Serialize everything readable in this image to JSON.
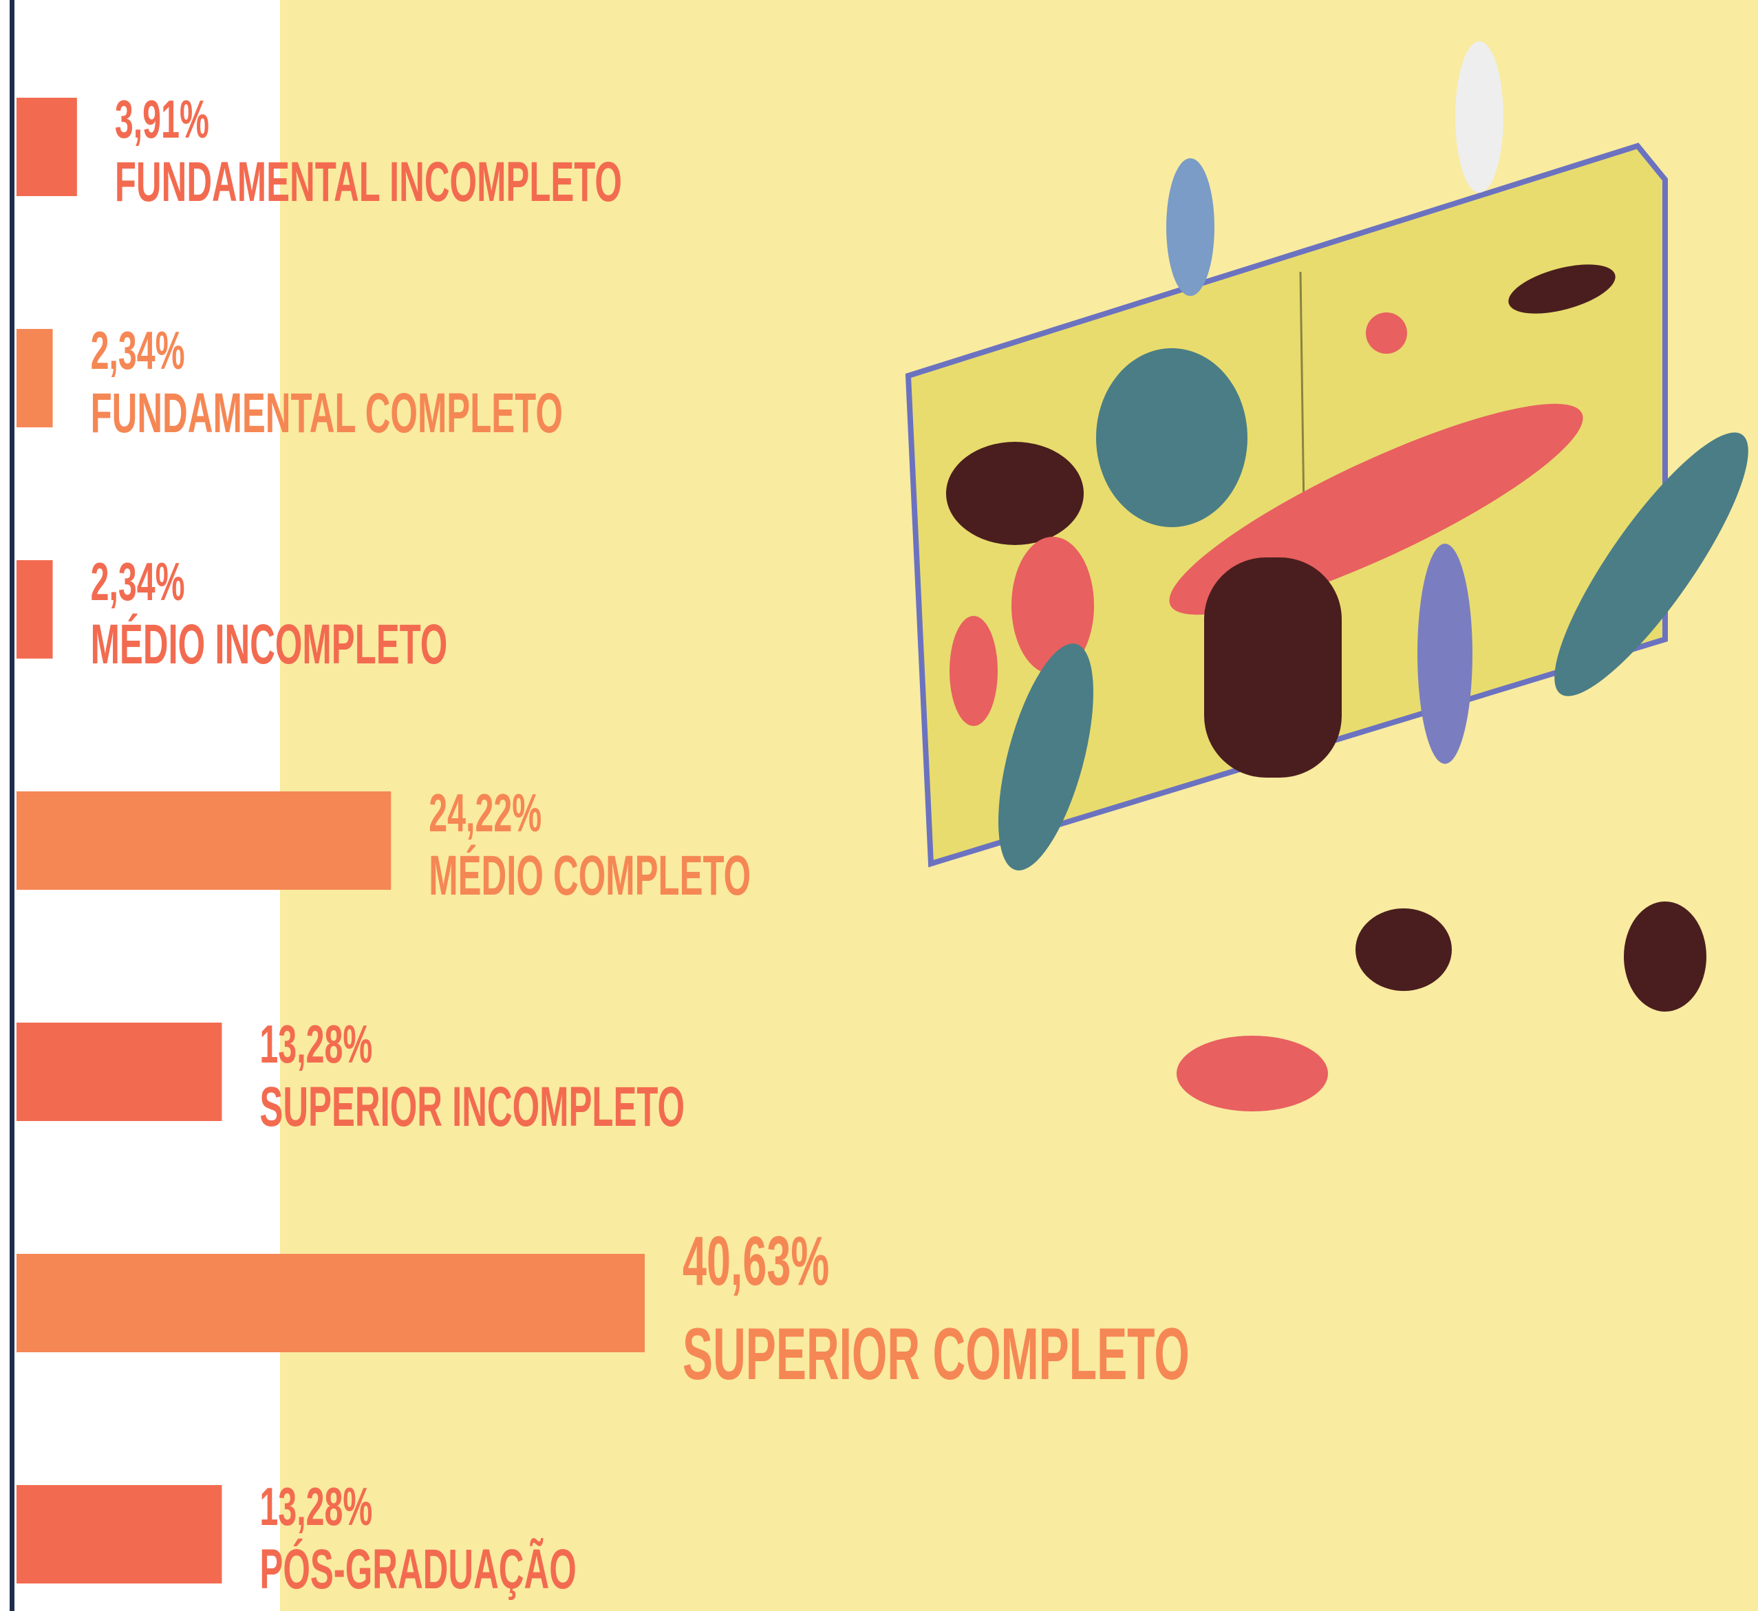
{
  "chart_data": {
    "type": "bar",
    "orientation": "horizontal",
    "categories": [
      "FUNDAMENTAL INCOMPLETO",
      "FUNDAMENTAL COMPLETO",
      "MÉDIO INCOMPLETO",
      "MÉDIO COMPLETO",
      "SUPERIOR INCOMPLETO",
      "SUPERIOR COMPLETO",
      "PÓS-GRADUAÇÃO"
    ],
    "values": [
      3.91,
      2.34,
      2.34,
      24.22,
      13.28,
      40.63,
      13.28
    ],
    "value_labels": [
      "3,91%",
      "2,34%",
      "2,34%",
      "24,22%",
      "13,28%",
      "40,63%",
      "13,28%"
    ],
    "colors": [
      "#f26b50",
      "#f58755",
      "#f26b50",
      "#f58755",
      "#f26b50",
      "#f58755",
      "#f26b50"
    ]
  }
}
